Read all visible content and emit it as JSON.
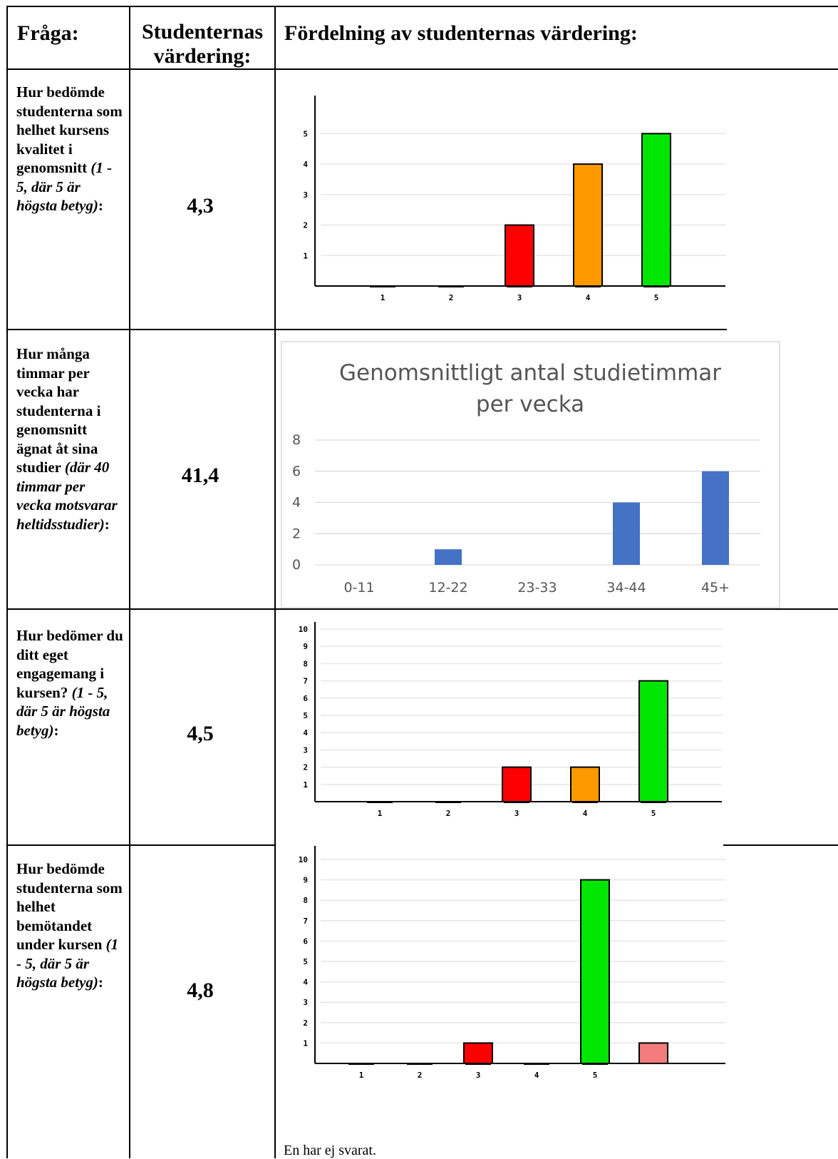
{
  "header": {
    "col1": "Fråga:",
    "col2_line1": "Studenternas",
    "col2_line2": "värdering:",
    "col3": "Fördelning av studenternas värdering:"
  },
  "rows": [
    {
      "question_parts": [
        "Hur bedömde studenterna som helhet kursens kvalitet i genomsnitt ",
        "(1 - 5, där 5 är högsta betyg)",
        ":"
      ],
      "value": "4,3"
    },
    {
      "question_parts": [
        "Hur många timmar per vecka har studenterna i genomsnitt ägnat åt sina studier ",
        "(där 40 timmar per vecka motsvarar heltidsstudier)",
        ":"
      ],
      "value": "41,4"
    },
    {
      "question_parts": [
        "Hur bedömer du ditt eget engagemang i kursen? ",
        "(1 - 5, där 5 är högsta betyg)",
        ":"
      ],
      "value": "4,5"
    },
    {
      "question_parts": [
        "Hur bedömde studenterna som helhet bemötandet under kursen ",
        "(1 - 5, där 5 är högsta betyg)",
        ":"
      ],
      "value": "4,8"
    }
  ],
  "note": "En har ej svarat.",
  "colors": {
    "red": "#ff0000",
    "orange": "#ff9900",
    "green": "#00e600",
    "pink": "#f47c7c",
    "blue": "#4472c4"
  },
  "chart_data": [
    {
      "type": "bar",
      "categories": [
        "1",
        "2",
        "3",
        "4",
        "5"
      ],
      "values": [
        0,
        0,
        2,
        4,
        5
      ],
      "bar_colors": [
        "#ff0000",
        "#ff0000",
        "#ff0000",
        "#ff9900",
        "#00e600"
      ],
      "yticks": [
        "1",
        "2",
        "3",
        "4",
        "5"
      ],
      "ylim": [
        0,
        5.5
      ]
    },
    {
      "type": "bar",
      "title": "Genomsnittligt antal studietimmar per vecka",
      "title_lines": [
        "Genomsnittligt antal studietimmar",
        "per vecka"
      ],
      "categories": [
        "0-11",
        "12-22",
        "23-33",
        "34-44",
        "45+"
      ],
      "values": [
        0,
        1,
        0,
        4,
        6
      ],
      "yticks": [
        "0",
        "2",
        "4",
        "6",
        "8"
      ],
      "ylim": [
        0,
        8
      ],
      "color": "#4472c4"
    },
    {
      "type": "bar",
      "categories": [
        "1",
        "2",
        "3",
        "4",
        "5"
      ],
      "values": [
        0,
        0,
        2,
        2,
        7
      ],
      "bar_colors": [
        "#ff0000",
        "#ff0000",
        "#ff0000",
        "#ff9900",
        "#00e600"
      ],
      "yticks": [
        "1",
        "2",
        "3",
        "4",
        "5",
        "6",
        "7",
        "8",
        "9",
        "10"
      ],
      "ylim": [
        0,
        10
      ]
    },
    {
      "type": "bar",
      "categories": [
        "1",
        "2",
        "3",
        "4",
        "5",
        ""
      ],
      "values": [
        0,
        0,
        1,
        0,
        9,
        1
      ],
      "bar_colors": [
        "#ff0000",
        "#ff0000",
        "#ff0000",
        "#ff9900",
        "#00e600",
        "#f47c7c"
      ],
      "yticks": [
        "1",
        "2",
        "3",
        "4",
        "5",
        "6",
        "7",
        "8",
        "9",
        "10"
      ],
      "ylim": [
        0,
        10
      ]
    }
  ]
}
